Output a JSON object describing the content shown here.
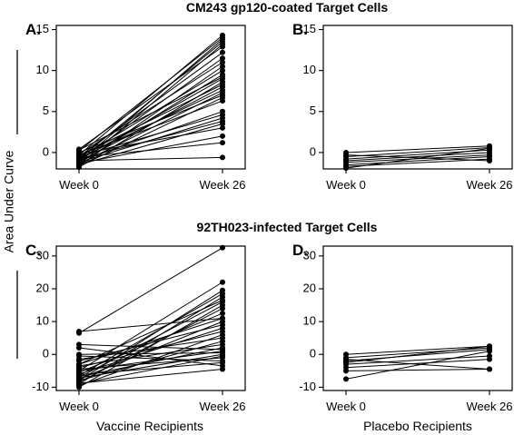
{
  "figure": {
    "ylabel": "Area Under Curve",
    "section_titles": [
      "CM243 gp120-coated Target Cells",
      "92TH023-infected Target Cells"
    ],
    "group_labels": [
      "Vaccine Recipients",
      "Placebo Recipients"
    ]
  },
  "chart_data": [
    {
      "type": "line",
      "panel": "A.",
      "x_categories": [
        "Week 0",
        "Week 26"
      ],
      "ylim": [
        -2,
        15.5
      ],
      "yticks": [
        0,
        5,
        10,
        15
      ],
      "series": [
        {
          "values": [
            -0.3,
            14.3
          ]
        },
        {
          "values": [
            0.2,
            14.0
          ]
        },
        {
          "values": [
            -1.2,
            13.8
          ]
        },
        {
          "values": [
            -0.8,
            13.5
          ]
        },
        {
          "values": [
            -1.5,
            13.2
          ]
        },
        {
          "values": [
            0.4,
            12.9
          ]
        },
        {
          "values": [
            -0.5,
            12.2
          ]
        },
        {
          "values": [
            -1.0,
            11.5
          ]
        },
        {
          "values": [
            -0.2,
            11.0
          ]
        },
        {
          "values": [
            -1.6,
            10.5
          ]
        },
        {
          "values": [
            -0.6,
            10.0
          ]
        },
        {
          "values": [
            -1.3,
            9.5
          ]
        },
        {
          "values": [
            0.3,
            9.2
          ]
        },
        {
          "values": [
            -0.9,
            9.0
          ]
        },
        {
          "values": [
            -1.8,
            8.6
          ]
        },
        {
          "values": [
            -0.4,
            8.3
          ]
        },
        {
          "values": [
            -1.1,
            8.0
          ]
        },
        {
          "values": [
            -0.7,
            7.6
          ]
        },
        {
          "values": [
            -1.4,
            7.3
          ]
        },
        {
          "values": [
            0.0,
            7.0
          ]
        },
        {
          "values": [
            -1.7,
            6.7
          ]
        },
        {
          "values": [
            -0.3,
            6.3
          ]
        },
        {
          "values": [
            -1.0,
            5.0
          ]
        },
        {
          "values": [
            -0.5,
            4.6
          ]
        },
        {
          "values": [
            -1.2,
            4.2
          ]
        },
        {
          "values": [
            -0.8,
            3.8
          ]
        },
        {
          "values": [
            -1.5,
            3.5
          ]
        },
        {
          "values": [
            -0.2,
            3.0
          ]
        },
        {
          "values": [
            -1.3,
            2.0
          ]
        },
        {
          "values": [
            -0.6,
            1.2
          ]
        },
        {
          "values": [
            -1.0,
            -0.6
          ]
        }
      ]
    },
    {
      "type": "line",
      "panel": "B.",
      "x_categories": [
        "Week 0",
        "Week 26"
      ],
      "ylim": [
        -2,
        15.5
      ],
      "yticks": [
        0,
        5,
        10,
        15
      ],
      "series": [
        {
          "values": [
            0.0,
            0.8
          ]
        },
        {
          "values": [
            -0.5,
            0.6
          ]
        },
        {
          "values": [
            -0.8,
            0.3
          ]
        },
        {
          "values": [
            -1.0,
            0.0
          ]
        },
        {
          "values": [
            -1.2,
            -0.3
          ]
        },
        {
          "values": [
            -1.5,
            -0.5
          ]
        },
        {
          "values": [
            -1.7,
            -0.8
          ]
        },
        {
          "values": [
            -0.3,
            -1.0
          ]
        },
        {
          "values": [
            -1.9,
            0.5
          ]
        }
      ]
    },
    {
      "type": "line",
      "panel": "C.",
      "x_categories": [
        "Week 0",
        "Week 26"
      ],
      "ylim": [
        -11,
        33
      ],
      "yticks": [
        -10,
        0,
        10,
        20,
        30
      ],
      "series": [
        {
          "values": [
            6.5,
            32.5
          ]
        },
        {
          "values": [
            -5.0,
            22.0
          ]
        },
        {
          "values": [
            -8.0,
            19.5
          ]
        },
        {
          "values": [
            -6.5,
            18.5
          ]
        },
        {
          "values": [
            -9.0,
            17.5
          ]
        },
        {
          "values": [
            -3.0,
            16.5
          ]
        },
        {
          "values": [
            -7.0,
            16.0
          ]
        },
        {
          "values": [
            -10.0,
            15.0
          ]
        },
        {
          "values": [
            -8.5,
            14.0
          ]
        },
        {
          "values": [
            -5.5,
            12.5
          ]
        },
        {
          "values": [
            7.0,
            11.0
          ]
        },
        {
          "values": [
            -7.5,
            10.0
          ]
        },
        {
          "values": [
            -2.0,
            9.0
          ]
        },
        {
          "values": [
            -6.0,
            8.0
          ]
        },
        {
          "values": [
            -4.0,
            7.0
          ]
        },
        {
          "values": [
            -9.5,
            6.0
          ]
        },
        {
          "values": [
            -1.5,
            5.0
          ]
        },
        {
          "values": [
            -8.0,
            4.0
          ]
        },
        {
          "values": [
            -3.5,
            3.0
          ]
        },
        {
          "values": [
            -6.8,
            2.0
          ]
        },
        {
          "values": [
            3.0,
            1.5
          ]
        },
        {
          "values": [
            -5.0,
            1.0
          ]
        },
        {
          "values": [
            0.0,
            0.5
          ]
        },
        {
          "values": [
            -7.2,
            0.0
          ]
        },
        {
          "values": [
            -9.0,
            -0.5
          ]
        },
        {
          "values": [
            -4.5,
            -1.0
          ]
        },
        {
          "values": [
            -0.5,
            -2.0
          ]
        },
        {
          "values": [
            -6.2,
            -2.5
          ]
        },
        {
          "values": [
            2.0,
            -3.5
          ]
        },
        {
          "values": [
            -8.8,
            -4.5
          ]
        },
        {
          "values": [
            -3.0,
            11.0
          ]
        }
      ]
    },
    {
      "type": "line",
      "panel": "D.",
      "x_categories": [
        "Week 0",
        "Week 26"
      ],
      "ylim": [
        -11,
        33
      ],
      "yticks": [
        -10,
        0,
        10,
        20,
        30
      ],
      "series": [
        {
          "values": [
            0.0,
            2.5
          ]
        },
        {
          "values": [
            -1.0,
            2.0
          ]
        },
        {
          "values": [
            -2.0,
            1.5
          ]
        },
        {
          "values": [
            -3.0,
            -0.5
          ]
        },
        {
          "values": [
            -4.0,
            -1.5
          ]
        },
        {
          "values": [
            -7.5,
            1.0
          ]
        },
        {
          "values": [
            -5.0,
            -4.5
          ]
        },
        {
          "values": [
            -1.5,
            -4.5
          ]
        },
        {
          "values": [
            -2.5,
            2.5
          ]
        }
      ]
    }
  ]
}
